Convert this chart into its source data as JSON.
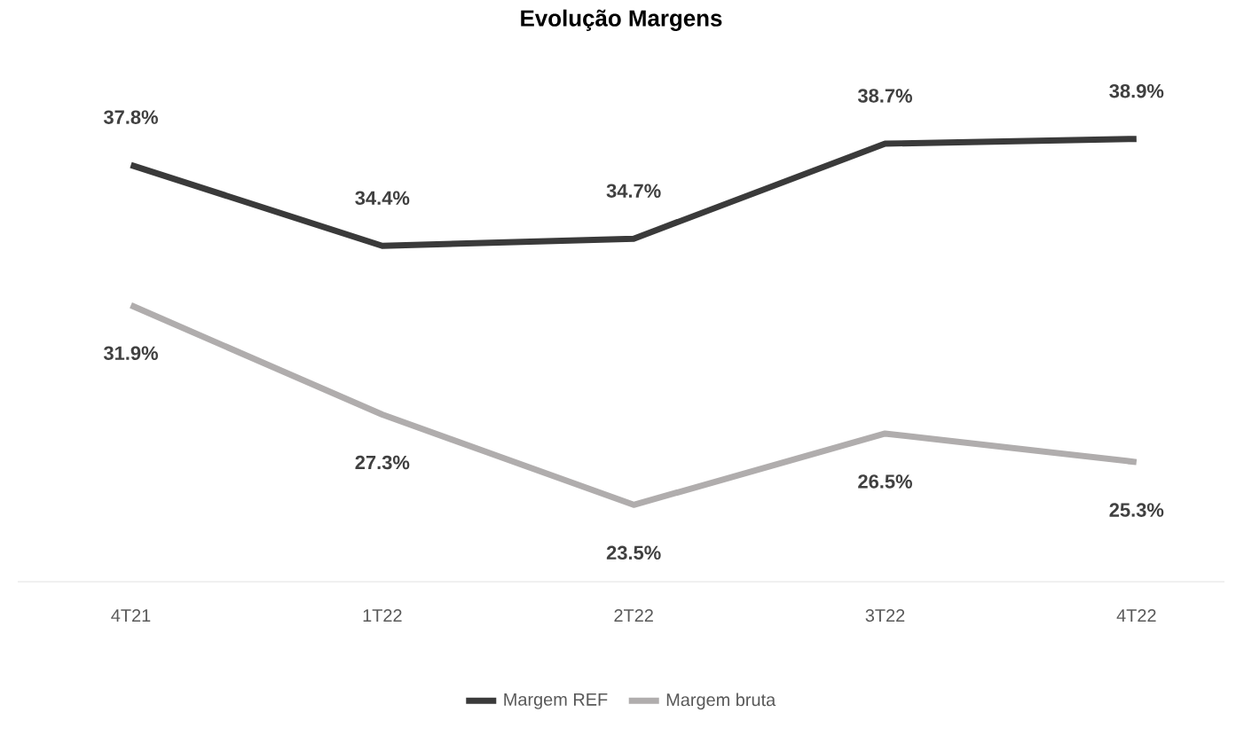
{
  "chart_data": {
    "type": "line",
    "title": "Evolução Margens",
    "categories": [
      "4T21",
      "1T22",
      "2T22",
      "3T22",
      "4T22"
    ],
    "series": [
      {
        "name": "Margem REF",
        "color": "#3a3a3a",
        "values": [
          37.8,
          34.4,
          34.7,
          38.7,
          38.9
        ],
        "value_labels": [
          "37.8%",
          "34.4%",
          "34.7%",
          "38.7%",
          "38.9%"
        ]
      },
      {
        "name": "Margem bruta",
        "color": "#b0adad",
        "values": [
          31.9,
          27.3,
          23.5,
          26.5,
          25.3
        ],
        "value_labels": [
          "31.9%",
          "27.3%",
          "23.5%",
          "26.5%",
          "25.3%"
        ]
      }
    ],
    "tick_labels": "x",
    "legend": "bottom"
  }
}
